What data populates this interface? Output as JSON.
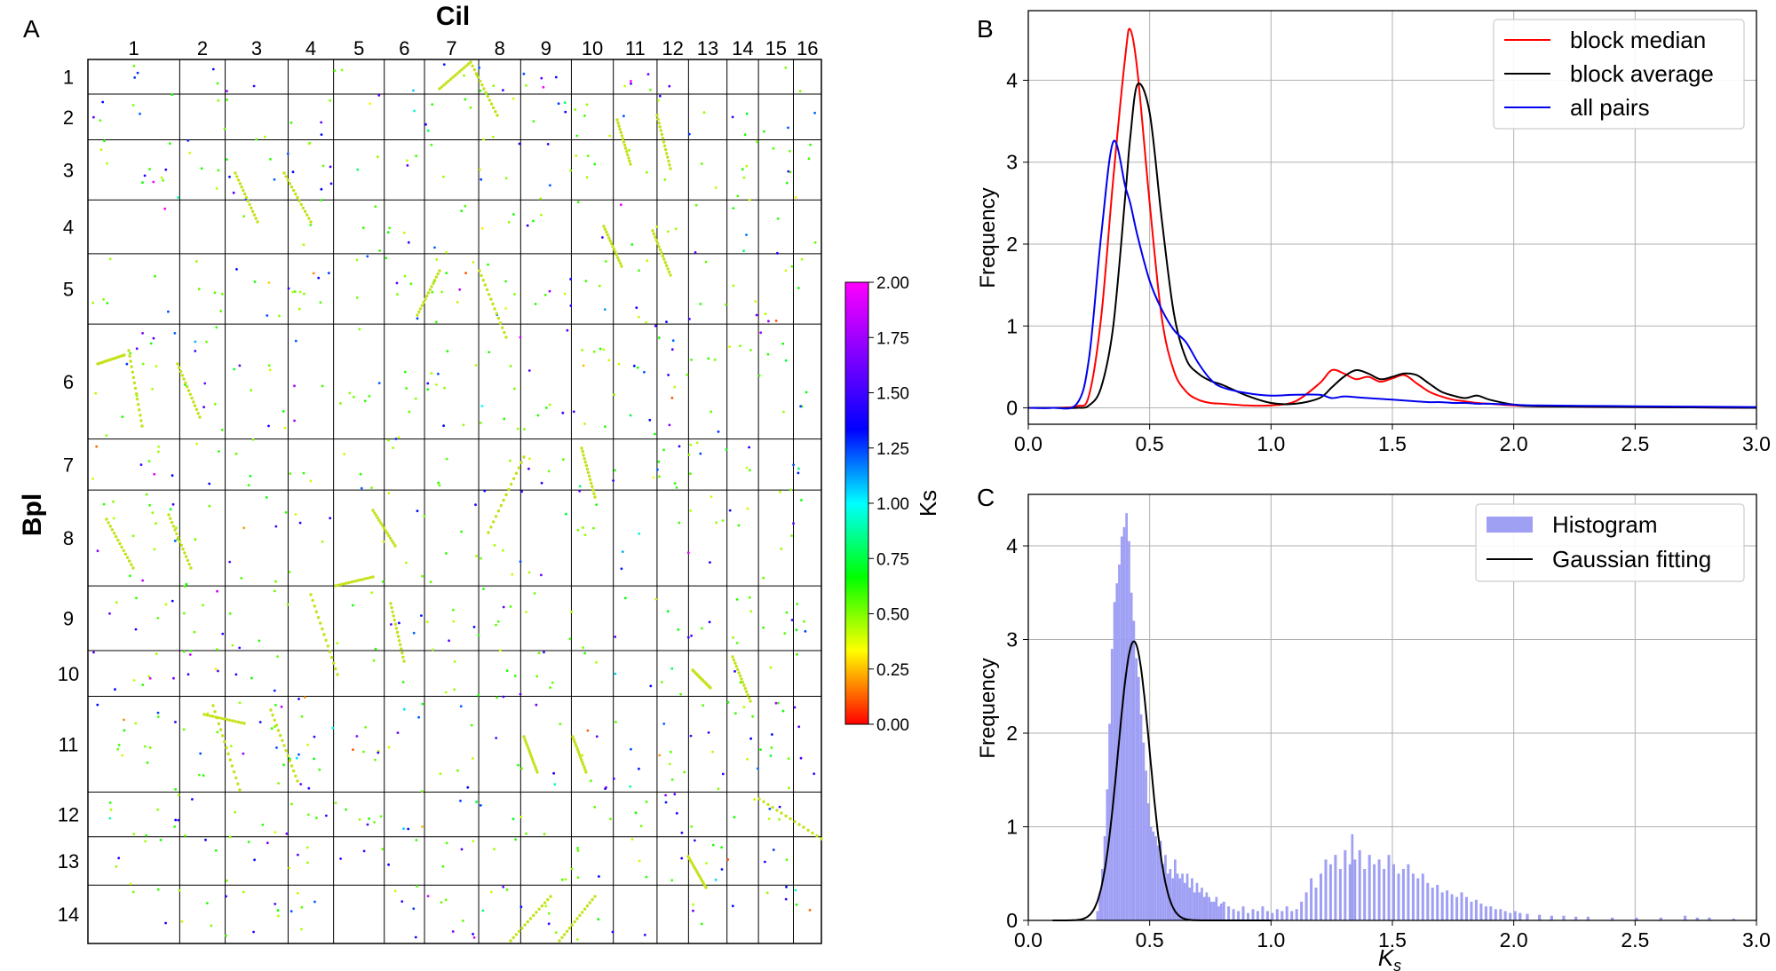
{
  "colors": {
    "red": "#ff0000",
    "black": "#000000",
    "blue": "#0000ee",
    "hist": "#9f9ff4",
    "grid": "#b0b0b0",
    "axis": "#000000",
    "dot_main": "#c6e119"
  },
  "panel_a": {
    "panel_label": "A",
    "xlabel": "Cil",
    "ylabel": "Bpl",
    "col_labels": [
      "1",
      "2",
      "3",
      "4",
      "5",
      "6",
      "7",
      "8",
      "9",
      "10",
      "11",
      "12",
      "13",
      "14",
      "15",
      "16"
    ],
    "col_sizes": [
      105,
      52,
      72,
      52,
      58,
      46,
      62,
      48,
      58,
      48,
      50,
      36,
      44,
      36,
      40,
      32
    ],
    "row_labels": [
      "1",
      "2",
      "3",
      "4",
      "5",
      "6",
      "7",
      "8",
      "9",
      "10",
      "11",
      "12",
      "13",
      "14"
    ],
    "row_sizes": [
      38,
      50,
      66,
      59,
      77,
      126,
      56,
      105,
      71,
      50,
      105,
      49,
      53,
      64
    ],
    "colorbar": {
      "label": "Ks",
      "ticks": [
        "0.00",
        "0.25",
        "0.50",
        "0.75",
        "1.00",
        "1.25",
        "1.50",
        "1.75",
        "2.00"
      ],
      "range": [
        0,
        2
      ]
    }
  },
  "chart_data": [
    {
      "id": "B",
      "type": "line",
      "panel_label": "B",
      "ylabel": "Frequency",
      "xlabel": "",
      "xlim": [
        0,
        3
      ],
      "ylim": [
        -0.2,
        4.85
      ],
      "xticks": [
        "0.0",
        "0.5",
        "1.0",
        "1.5",
        "2.0",
        "2.5",
        "3.0"
      ],
      "yticks": [
        "0",
        "1",
        "2",
        "3",
        "4"
      ],
      "grid": true,
      "legend_position": "top-right",
      "x": [
        0.0,
        0.1,
        0.2,
        0.25,
        0.3,
        0.35,
        0.4,
        0.42,
        0.45,
        0.5,
        0.55,
        0.6,
        0.65,
        0.7,
        0.75,
        0.8,
        0.9,
        1.0,
        1.1,
        1.2,
        1.25,
        1.3,
        1.35,
        1.4,
        1.45,
        1.5,
        1.55,
        1.6,
        1.65,
        1.7,
        1.75,
        1.8,
        1.85,
        1.9,
        2.0,
        2.1,
        2.5,
        3.0
      ],
      "series": [
        {
          "name": "block median",
          "color": "#ff0000",
          "values": [
            0,
            0,
            0.02,
            0.15,
            1.1,
            2.8,
            4.3,
            4.62,
            4.1,
            2.5,
            1.1,
            0.45,
            0.2,
            0.1,
            0.06,
            0.05,
            0.03,
            0.03,
            0.08,
            0.3,
            0.46,
            0.42,
            0.35,
            0.38,
            0.32,
            0.36,
            0.4,
            0.3,
            0.2,
            0.14,
            0.1,
            0.08,
            0.06,
            0.05,
            0.03,
            0.02,
            0.01,
            0
          ]
        },
        {
          "name": "block average",
          "color": "#000000",
          "values": [
            0,
            0,
            0,
            0.03,
            0.25,
            1.0,
            2.6,
            3.3,
            3.95,
            3.6,
            2.3,
            1.15,
            0.6,
            0.42,
            0.33,
            0.28,
            0.15,
            0.06,
            0.05,
            0.12,
            0.25,
            0.38,
            0.46,
            0.42,
            0.35,
            0.38,
            0.42,
            0.4,
            0.3,
            0.2,
            0.15,
            0.12,
            0.15,
            0.1,
            0.04,
            0.02,
            0.01,
            0
          ]
        },
        {
          "name": "all pairs",
          "color": "#0000ee",
          "values": [
            0,
            0,
            0.05,
            0.6,
            2.1,
            3.25,
            2.7,
            2.5,
            2.1,
            1.55,
            1.2,
            0.95,
            0.8,
            0.55,
            0.35,
            0.25,
            0.18,
            0.15,
            0.16,
            0.16,
            0.12,
            0.14,
            0.13,
            0.12,
            0.11,
            0.1,
            0.09,
            0.08,
            0.07,
            0.07,
            0.06,
            0.06,
            0.05,
            0.05,
            0.04,
            0.03,
            0.02,
            0.01
          ]
        }
      ]
    },
    {
      "id": "C",
      "type": "bar",
      "panel_label": "C",
      "ylabel": "Frequency",
      "xlabel": "Ks",
      "xlim": [
        0,
        3
      ],
      "ylim": [
        0,
        4.55
      ],
      "xticks": [
        "0.0",
        "0.5",
        "1.0",
        "1.5",
        "2.0",
        "2.5",
        "3.0"
      ],
      "yticks": [
        "0",
        "1",
        "2",
        "3",
        "4"
      ],
      "grid": true,
      "legend_position": "top-right",
      "bin_width": 0.01,
      "hist_name": "Histogram",
      "hist_x": [
        0.28,
        0.29,
        0.3,
        0.31,
        0.32,
        0.33,
        0.34,
        0.35,
        0.36,
        0.37,
        0.38,
        0.39,
        0.4,
        0.41,
        0.42,
        0.43,
        0.44,
        0.45,
        0.46,
        0.47,
        0.48,
        0.49,
        0.5,
        0.51,
        0.52,
        0.53,
        0.54,
        0.55,
        0.56,
        0.57,
        0.58,
        0.59,
        0.6,
        0.61,
        0.62,
        0.63,
        0.64,
        0.65,
        0.66,
        0.67,
        0.68,
        0.69,
        0.7,
        0.71,
        0.72,
        0.73,
        0.74,
        0.75,
        0.76,
        0.77,
        0.78,
        0.79,
        0.8,
        0.82,
        0.84,
        0.86,
        0.88,
        0.9,
        0.92,
        0.94,
        0.96,
        0.98,
        1.0,
        1.02,
        1.04,
        1.06,
        1.08,
        1.1,
        1.12,
        1.14,
        1.16,
        1.18,
        1.2,
        1.22,
        1.24,
        1.26,
        1.28,
        1.3,
        1.32,
        1.33,
        1.34,
        1.36,
        1.38,
        1.4,
        1.42,
        1.44,
        1.46,
        1.48,
        1.5,
        1.52,
        1.54,
        1.56,
        1.58,
        1.6,
        1.62,
        1.64,
        1.66,
        1.68,
        1.7,
        1.72,
        1.74,
        1.76,
        1.78,
        1.8,
        1.82,
        1.84,
        1.86,
        1.88,
        1.9,
        1.92,
        1.94,
        1.96,
        1.98,
        2.0,
        2.02,
        2.05,
        2.1,
        2.15,
        2.2,
        2.25,
        2.3,
        2.4,
        2.5,
        2.6,
        2.7,
        2.75,
        2.8,
        2.9,
        2.97
      ],
      "hist_values": [
        0.1,
        0.3,
        0.55,
        0.9,
        1.4,
        2.1,
        2.9,
        3.4,
        3.6,
        3.8,
        4.1,
        4.2,
        4.35,
        4.05,
        3.5,
        3.2,
        2.8,
        2.6,
        2.2,
        1.9,
        1.6,
        1.25,
        1.0,
        0.95,
        0.9,
        0.8,
        0.85,
        0.6,
        0.7,
        0.5,
        0.55,
        0.45,
        0.65,
        0.5,
        0.45,
        0.5,
        0.4,
        0.5,
        0.35,
        0.45,
        0.3,
        0.4,
        0.3,
        0.35,
        0.25,
        0.3,
        0.25,
        0.2,
        0.2,
        0.25,
        0.15,
        0.18,
        0.2,
        0.15,
        0.12,
        0.1,
        0.15,
        0.08,
        0.12,
        0.1,
        0.15,
        0.1,
        0.08,
        0.12,
        0.1,
        0.15,
        0.1,
        0.12,
        0.2,
        0.3,
        0.45,
        0.35,
        0.5,
        0.65,
        0.6,
        0.7,
        0.55,
        0.75,
        0.6,
        0.92,
        0.65,
        0.75,
        0.55,
        0.7,
        0.6,
        0.65,
        0.55,
        0.7,
        0.6,
        0.5,
        0.55,
        0.6,
        0.5,
        0.45,
        0.5,
        0.4,
        0.35,
        0.38,
        0.3,
        0.32,
        0.28,
        0.25,
        0.3,
        0.25,
        0.2,
        0.22,
        0.18,
        0.15,
        0.15,
        0.12,
        0.12,
        0.1,
        0.08,
        0.1,
        0.08,
        0.07,
        0.06,
        0.05,
        0.05,
        0.04,
        0.04,
        0.03,
        0.03,
        0.03,
        0.05,
        0.03,
        0.03,
        0.02
      ],
      "fit_name": "Gaussian fitting",
      "fit": {
        "mean": 0.435,
        "sd": 0.065,
        "amplitude": 2.98
      }
    }
  ]
}
